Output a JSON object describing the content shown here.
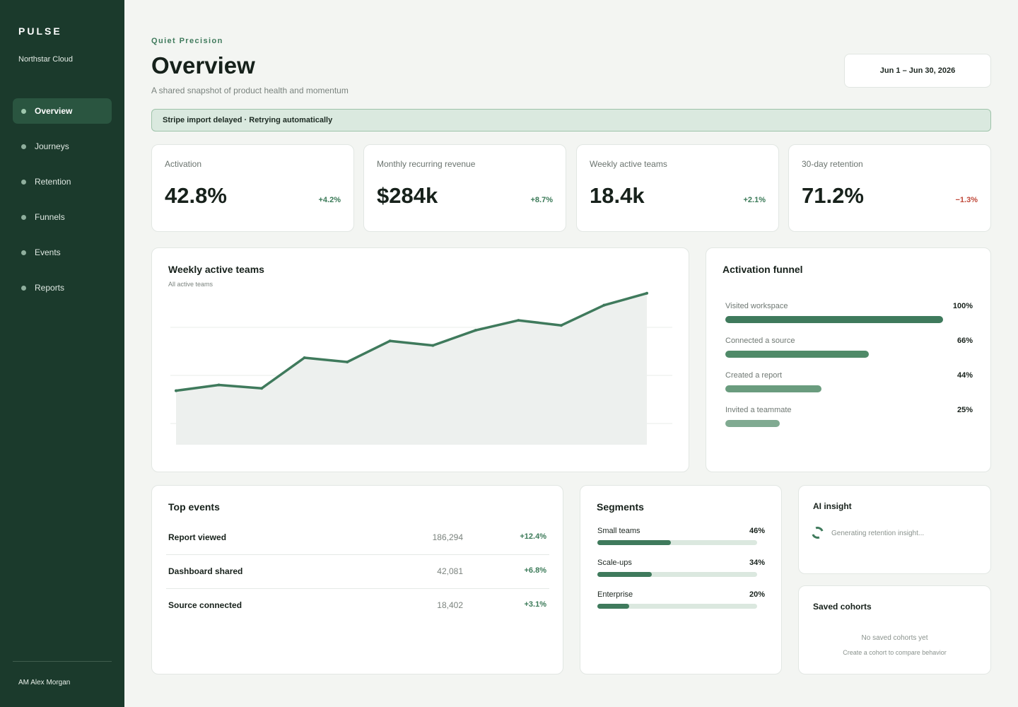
{
  "sidebar": {
    "brand": "PULSE",
    "workspace": "Northstar Cloud",
    "items": [
      {
        "label": "Overview",
        "active": true
      },
      {
        "label": "Journeys",
        "active": false
      },
      {
        "label": "Retention",
        "active": false
      },
      {
        "label": "Funnels",
        "active": false
      },
      {
        "label": "Events",
        "active": false
      },
      {
        "label": "Reports",
        "active": false
      }
    ],
    "user": "AM Alex Morgan"
  },
  "header": {
    "eyebrow": "Quiet Precision",
    "title": "Overview",
    "subtitle": "A shared snapshot of product health and momentum",
    "date_range": "Jun 1 – Jun 30, 2026"
  },
  "banner": "Stripe import delayed · Retrying automatically",
  "kpis": [
    {
      "label": "Activation",
      "value": "42.8%",
      "delta": "+4.2%",
      "trend": "up"
    },
    {
      "label": "Monthly recurring revenue",
      "value": "$284k",
      "delta": "+8.7%",
      "trend": "up"
    },
    {
      "label": "Weekly active teams",
      "value": "18.4k",
      "delta": "+2.1%",
      "trend": "up"
    },
    {
      "label": "30-day retention",
      "value": "71.2%",
      "delta": "−1.3%",
      "trend": "down"
    }
  ],
  "chart": {
    "title": "Weekly active teams",
    "subtitle": "All active teams"
  },
  "chart_data": {
    "type": "area",
    "title": "Weekly active teams",
    "subtitle": "All active teams",
    "x": [
      1,
      2,
      3,
      4,
      5,
      6,
      7,
      8,
      9,
      10,
      11,
      12
    ],
    "values": [
      3.85,
      4.26,
      4.02,
      6.2,
      5.9,
      7.4,
      7.08,
      8.16,
      8.87,
      8.51,
      9.95,
      10.8
    ],
    "ylim": [
      0,
      12
    ],
    "grid": true,
    "color": "#3f7a5c"
  },
  "funnel": {
    "title": "Activation funnel",
    "steps": [
      {
        "label": "Visited workspace",
        "pct_label": "100%",
        "value": 100,
        "color": "#3f7a5c"
      },
      {
        "label": "Connected a source",
        "pct_label": "66%",
        "value": 66,
        "color": "#4f8a68"
      },
      {
        "label": "Created a report",
        "pct_label": "44%",
        "value": 44,
        "color": "#6a9c7e"
      },
      {
        "label": "Invited a teammate",
        "pct_label": "25%",
        "value": 25,
        "color": "#80aa91"
      }
    ]
  },
  "top_events": {
    "title": "Top events",
    "rows": [
      {
        "name": "Report viewed",
        "count": "186,294",
        "delta": "+12.4%"
      },
      {
        "name": "Dashboard shared",
        "count": "42,081",
        "delta": "+6.8%"
      },
      {
        "name": "Source connected",
        "count": "18,402",
        "delta": "+3.1%"
      }
    ]
  },
  "segments": {
    "title": "Segments",
    "rows": [
      {
        "label": "Small teams",
        "pct_label": "46%",
        "value": 46
      },
      {
        "label": "Scale-ups",
        "pct_label": "34%",
        "value": 34
      },
      {
        "label": "Enterprise",
        "pct_label": "20%",
        "value": 20
      }
    ]
  },
  "ai_insight": {
    "title": "AI insight",
    "status": "Generating retention insight..."
  },
  "saved_cohorts": {
    "title": "Saved cohorts",
    "empty": "No saved cohorts yet",
    "hint": "Create a cohort to compare behavior"
  }
}
